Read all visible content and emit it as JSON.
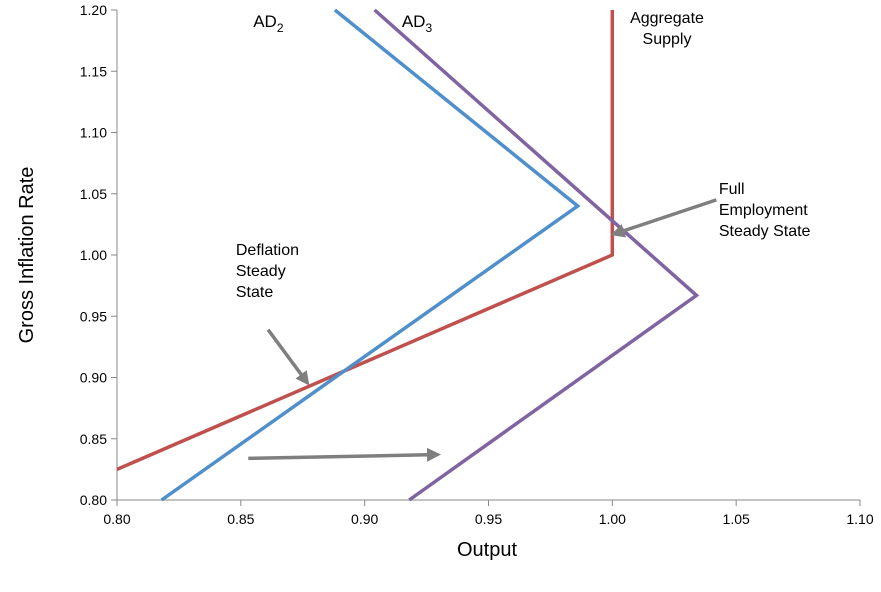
{
  "chart_data": {
    "type": "line",
    "xlabel": "Output",
    "ylabel": "Gross Inflation Rate",
    "xlim": [
      0.8,
      1.1
    ],
    "ylim": [
      0.8,
      1.2
    ],
    "x_ticks": [
      "0.80",
      "0.85",
      "0.90",
      "0.95",
      "1.00",
      "1.05",
      "1.10"
    ],
    "y_ticks": [
      "0.80",
      "0.85",
      "0.90",
      "0.95",
      "1.00",
      "1.05",
      "1.10",
      "1.15",
      "1.20"
    ],
    "grid": false,
    "legend": "none",
    "series": [
      {
        "key": "as",
        "color": "#C0504D",
        "points": [
          [
            0.8,
            0.825
          ],
          [
            1.0,
            1.0
          ],
          [
            1.0,
            1.2
          ]
        ]
      },
      {
        "key": "ad2",
        "color": "#4F8FCC",
        "points": [
          [
            0.818,
            0.8
          ],
          [
            0.986,
            1.04
          ],
          [
            0.888,
            1.2
          ]
        ]
      },
      {
        "key": "ad3",
        "color": "#8064A2",
        "points": [
          [
            0.918,
            0.8
          ],
          [
            1.034,
            0.967
          ],
          [
            0.904,
            1.2
          ]
        ]
      }
    ],
    "series_labels": [
      {
        "key": "ad2",
        "base": "AD",
        "sub": "2",
        "x": 0.855,
        "y": 1.191
      },
      {
        "key": "ad3",
        "base": "AD",
        "sub": "3",
        "x": 0.915,
        "y": 1.191
      }
    ],
    "annotations": [
      {
        "key": "as_label",
        "lines": [
          "Aggregate",
          "Supply"
        ],
        "x": 1.01,
        "y": 1.195,
        "anchor": "middle-left"
      },
      {
        "key": "full_emp",
        "lines": [
          "Full",
          "Employment",
          "Steady State"
        ],
        "x": 1.043,
        "y": 1.05,
        "anchor": "start"
      },
      {
        "key": "deflation",
        "lines": [
          "Deflation",
          "Steady",
          "State"
        ],
        "x": 0.848,
        "y": 1.0,
        "anchor": "start"
      }
    ],
    "arrows": [
      {
        "key": "full_emp_arrow",
        "from": [
          1.042,
          1.045
        ],
        "to": [
          1.002,
          1.018
        ]
      },
      {
        "key": "deflation_arrow",
        "from": [
          0.861,
          0.939
        ],
        "to": [
          0.876,
          0.898
        ]
      },
      {
        "key": "shift_arrow",
        "from": [
          0.853,
          0.834
        ],
        "to": [
          0.928,
          0.837
        ]
      }
    ],
    "arrow_color": "#7F7F7F"
  }
}
